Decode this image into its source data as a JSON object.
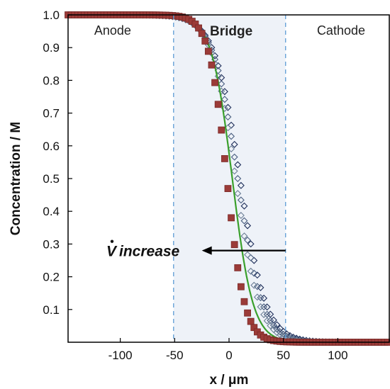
{
  "chart_data": {
    "type": "scatter",
    "xlabel": "x / μm",
    "ylabel": "Concentration / M",
    "xlim": [
      -148,
      148
    ],
    "ylim": [
      0,
      1.0
    ],
    "xticks": [
      "-100",
      "-50",
      "0",
      "50",
      "100"
    ],
    "yticks": [
      "0.1",
      "0.2",
      "0.3",
      "0.4",
      "0.5",
      "0.6",
      "0.7",
      "0.8",
      "0.9",
      "1.0"
    ],
    "regions": {
      "anode": "Anode",
      "bridge": "Bridge",
      "cathode": "Cathode",
      "boundaries": [
        -51,
        52
      ]
    },
    "annotation": {
      "symbol": "V",
      "text": "increase",
      "arrow_from": [
        52,
        0.28
      ],
      "arrow_to": [
        -25,
        0.28
      ]
    },
    "series": [
      {
        "marker": "diamond-open",
        "color": "#1f2f5a",
        "center": 10,
        "width": 26,
        "x_range": [
          -148,
          148
        ],
        "step": 3
      },
      {
        "marker": "diamond-open",
        "color": "#4a5f80",
        "center": 8,
        "width": 25,
        "x_range": [
          -148,
          148
        ],
        "step": 3
      },
      {
        "marker": "diamond-open",
        "color": "#6c7f96",
        "center": 6,
        "width": 24,
        "x_range": [
          -148,
          148
        ],
        "step": 3
      },
      {
        "marker": "line",
        "color": "#3aa02c",
        "center": 3,
        "width": 21,
        "x_range": [
          -148,
          148
        ],
        "step": 1
      },
      {
        "marker": "square",
        "color": "#9b3b38",
        "center": -2,
        "width": 18,
        "x_range": [
          -148,
          148
        ],
        "step": 3
      }
    ]
  }
}
